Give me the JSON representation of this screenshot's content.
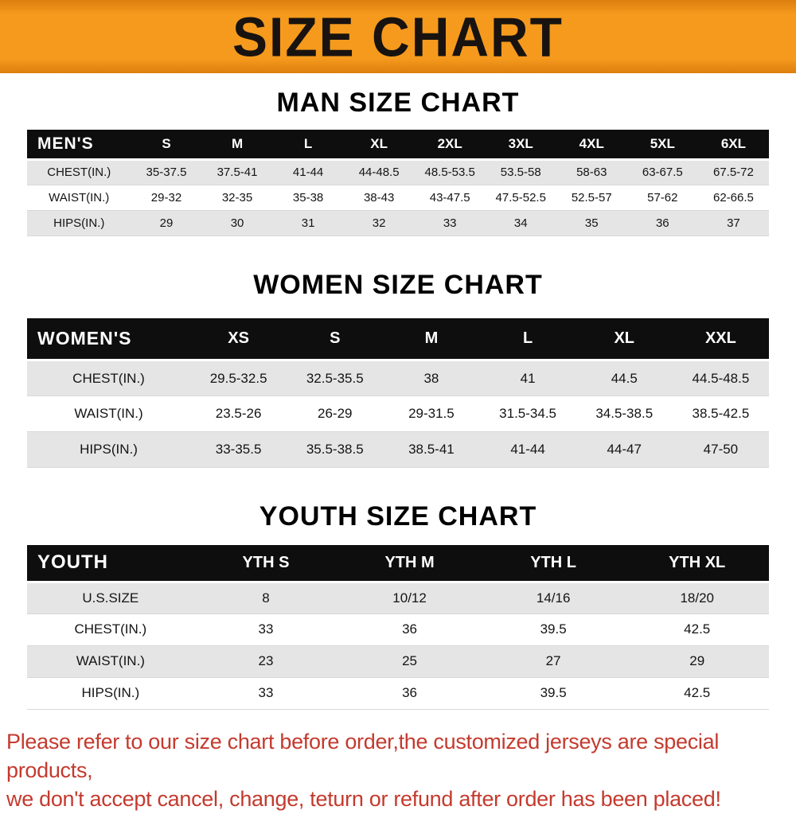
{
  "banner": {
    "title": "SIZE CHART"
  },
  "colors": {
    "banner_orange": "#f59a1d",
    "banner_orange_dark": "#dd7e0e",
    "header_black": "#0e0e0e",
    "row_gray": "#e5e5e5",
    "footer_red": "#c43a2e"
  },
  "chart_data": [
    {
      "type": "table",
      "title": "MAN SIZE CHART",
      "corner": "MEN'S",
      "columns": [
        "S",
        "M",
        "L",
        "XL",
        "2XL",
        "3XL",
        "4XL",
        "5XL",
        "6XL"
      ],
      "rows": [
        {
          "label": "CHEST(IN.)",
          "values": [
            "35-37.5",
            "37.5-41",
            "41-44",
            "44-48.5",
            "48.5-53.5",
            "53.5-58",
            "58-63",
            "63-67.5",
            "67.5-72"
          ]
        },
        {
          "label": "WAIST(IN.)",
          "values": [
            "29-32",
            "32-35",
            "35-38",
            "38-43",
            "43-47.5",
            "47.5-52.5",
            "52.5-57",
            "57-62",
            "62-66.5"
          ]
        },
        {
          "label": "HIPS(IN.)",
          "values": [
            "29",
            "30",
            "31",
            "32",
            "33",
            "34",
            "35",
            "36",
            "37"
          ]
        }
      ]
    },
    {
      "type": "table",
      "title": "WOMEN SIZE CHART",
      "corner": "WOMEN'S",
      "columns": [
        "XS",
        "S",
        "M",
        "L",
        "XL",
        "XXL"
      ],
      "rows": [
        {
          "label": "CHEST(IN.)",
          "values": [
            "29.5-32.5",
            "32.5-35.5",
            "38",
            "41",
            "44.5",
            "44.5-48.5"
          ]
        },
        {
          "label": "WAIST(IN.)",
          "values": [
            "23.5-26",
            "26-29",
            "29-31.5",
            "31.5-34.5",
            "34.5-38.5",
            "38.5-42.5"
          ]
        },
        {
          "label": "HIPS(IN.)",
          "values": [
            "33-35.5",
            "35.5-38.5",
            "38.5-41",
            "41-44",
            "44-47",
            "47-50"
          ]
        }
      ]
    },
    {
      "type": "table",
      "title": "YOUTH SIZE CHART",
      "corner": "YOUTH",
      "columns": [
        "YTH S",
        "YTH M",
        "YTH L",
        "YTH XL"
      ],
      "rows": [
        {
          "label": "U.S.SIZE",
          "values": [
            "8",
            "10/12",
            "14/16",
            "18/20"
          ]
        },
        {
          "label": "CHEST(IN.)",
          "values": [
            "33",
            "36",
            "39.5",
            "42.5"
          ]
        },
        {
          "label": "WAIST(IN.)",
          "values": [
            "23",
            "25",
            "27",
            "29"
          ]
        },
        {
          "label": "HIPS(IN.)",
          "values": [
            "33",
            "36",
            "39.5",
            "42.5"
          ]
        }
      ]
    }
  ],
  "footer": {
    "lines": [
      "Please refer to our size chart before order,the customized jerseys are special products,",
      "we don't accept cancel, change, teturn or refund after order has been placed!"
    ]
  }
}
